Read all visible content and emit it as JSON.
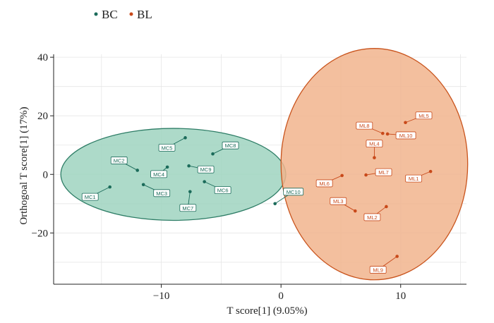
{
  "chart_data": {
    "type": "scatter",
    "xlabel": "T score[1] (9.05%)",
    "ylabel": "Orthogoal T score[1] (17%)",
    "xlim": [
      -19,
      15.5
    ],
    "ylim": [
      -37.5,
      41
    ],
    "x_ticks": [
      -10,
      0,
      10
    ],
    "x_tick_labels": [
      "−10",
      "0",
      "10"
    ],
    "y_ticks": [
      -20,
      0,
      20,
      40
    ],
    "y_tick_labels": [
      "−20",
      "0",
      "20",
      "40"
    ],
    "grid": true,
    "legend_position": "top-left",
    "series": [
      {
        "name": "BC",
        "color": "#1b6b5a",
        "ellipse_fill": "#9fd4c0",
        "ellipse_stroke": "#2e7d66",
        "ellipse": {
          "cx": -9,
          "cy": 0,
          "rx": 9.4,
          "ry": 15.7
        },
        "points": [
          {
            "label": "MC1",
            "x": -14.3,
            "y": -4.3
          },
          {
            "label": "MC2",
            "x": -12,
            "y": 1.4
          },
          {
            "label": "MC3",
            "x": -11.5,
            "y": -3.5
          },
          {
            "label": "MC4",
            "x": -9.5,
            "y": 2.5
          },
          {
            "label": "MC5",
            "x": -8,
            "y": 12.5
          },
          {
            "label": "MC6",
            "x": -6.4,
            "y": -2.5
          },
          {
            "label": "MC7",
            "x": -7.6,
            "y": -5.9
          },
          {
            "label": "MC8",
            "x": -5.7,
            "y": 7
          },
          {
            "label": "MC9",
            "x": -7.7,
            "y": 2.9
          },
          {
            "label": "MC10",
            "x": -0.5,
            "y": -10
          }
        ]
      },
      {
        "name": "BL",
        "color": "#c8491a",
        "ellipse_fill": "#f1b48d",
        "ellipse_stroke": "#c9541d",
        "ellipse": {
          "cx": 7.8,
          "cy": 3.5,
          "rx": 7.8,
          "ry": 39.5
        },
        "points": [
          {
            "label": "ML1",
            "x": 12.5,
            "y": 1
          },
          {
            "label": "ML2",
            "x": 8.8,
            "y": -11
          },
          {
            "label": "ML3",
            "x": 6.2,
            "y": -12.5
          },
          {
            "label": "ML4",
            "x": 7.8,
            "y": 5.7
          },
          {
            "label": "ML5",
            "x": 10.4,
            "y": 17.7
          },
          {
            "label": "ML6",
            "x": 5.1,
            "y": -0.4
          },
          {
            "label": "ML7",
            "x": 7.1,
            "y": -0.2
          },
          {
            "label": "ML8",
            "x": 8.5,
            "y": 14
          },
          {
            "label": "ML9",
            "x": 9.7,
            "y": -28
          },
          {
            "label": "ML10",
            "x": 8.9,
            "y": 13.8
          }
        ]
      }
    ]
  }
}
